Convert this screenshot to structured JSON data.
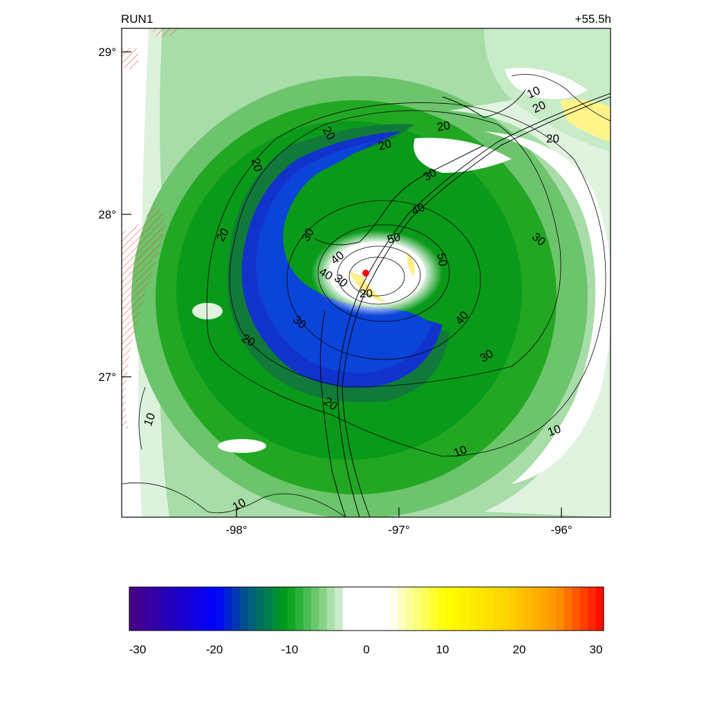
{
  "header": {
    "run_label": "RUN1",
    "forecast_time": "+55.5h"
  },
  "map": {
    "lat_ticks": [
      "29°",
      "28°",
      "27°"
    ],
    "lon_ticks": [
      "-98°",
      "-97°",
      "-96°"
    ],
    "contour_labels": [
      "10",
      "20",
      "20",
      "20",
      "20",
      "20",
      "30",
      "40",
      "50",
      "50",
      "40",
      "30",
      "40",
      "30",
      "30",
      "20",
      "20",
      "30",
      "20",
      "20",
      "20",
      "10",
      "10"
    ],
    "storm_center": {
      "lon": -97.2,
      "lat": 27.63,
      "color": "#ff0000"
    }
  },
  "colorbar": {
    "ticks": [
      "-30",
      "-20",
      "-10",
      "0",
      "10",
      "20",
      "30"
    ],
    "range": [
      -30,
      30
    ],
    "colors": [
      "#4b0082",
      "#0000ff",
      "#009900",
      "#ffffff",
      "#ffff00",
      "#ff0000"
    ]
  }
}
